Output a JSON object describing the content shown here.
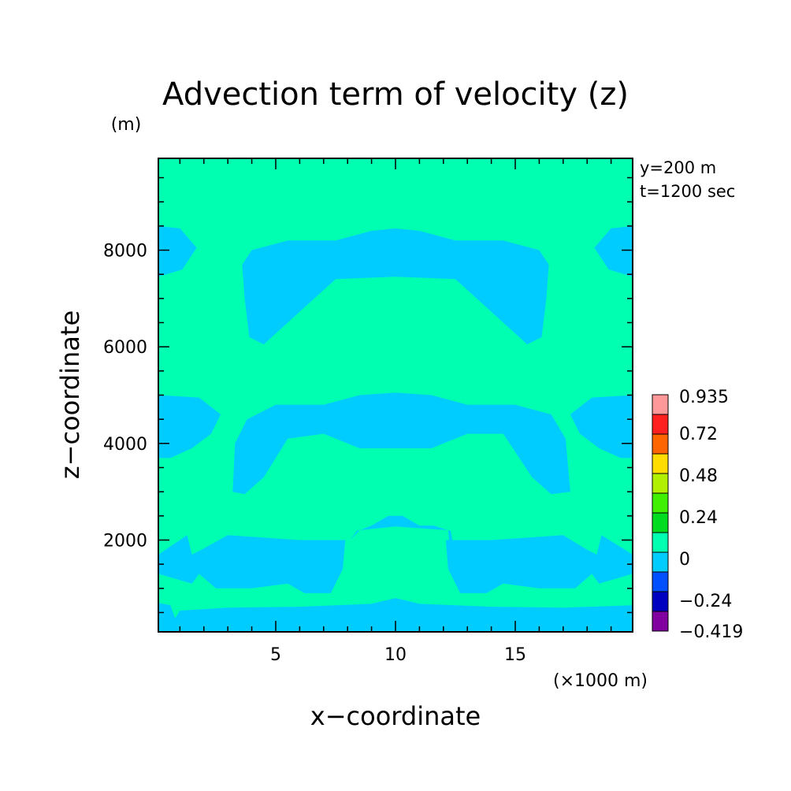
{
  "chart_data": {
    "type": "heatmap",
    "subtype": "filled-contour",
    "title": "Advection term of velocity (z)",
    "xlabel": "x−coordinate",
    "ylabel": "z−coordinate",
    "x_unit": "(×1000 m)",
    "y_unit": "(m)",
    "annotations": [
      "y=200 m",
      "t=1200 sec"
    ],
    "xlim": [
      0.1,
      19.9
    ],
    "ylim": [
      100,
      9900
    ],
    "x_ticks": [
      5,
      10,
      15
    ],
    "x_tick_labels": [
      "5",
      "10",
      "15"
    ],
    "y_ticks": [
      2000,
      4000,
      6000,
      8000
    ],
    "y_tick_labels": [
      "2000",
      "4000",
      "6000",
      "8000"
    ],
    "grid": false,
    "background_level_color": "#00ffb0",
    "colorbar": {
      "levels": [
        -0.419,
        -0.24,
        0,
        0.24,
        0.48,
        0.72,
        0.935
      ],
      "labels": [
        "−0.419",
        "−0.24",
        "0",
        "0.24",
        "0.48",
        "0.72",
        "0.935"
      ],
      "colors": [
        "#8000a0",
        "#0000c0",
        "#0050ff",
        "#00ccff",
        "#00ffb0",
        "#00dd20",
        "#40f000",
        "#b0f000",
        "#ffdd00",
        "#ff6600",
        "#ff2020",
        "#ff9999"
      ]
    },
    "regions": [
      {
        "name": "lower-band",
        "value_range": [
          -0.24,
          0
        ],
        "points": [
          [
            0.1,
            100
          ],
          [
            19.9,
            100
          ],
          [
            19.9,
            650
          ],
          [
            17,
            600
          ],
          [
            14,
            620
          ],
          [
            11,
            680
          ],
          [
            10,
            800
          ],
          [
            9,
            680
          ],
          [
            6,
            620
          ],
          [
            3,
            600
          ],
          [
            1,
            540
          ],
          [
            0.8,
            380
          ],
          [
            0.6,
            650
          ],
          [
            0.1,
            700
          ]
        ]
      },
      {
        "name": "left-lower-lobe",
        "value_range": [
          -0.24,
          0
        ],
        "points": [
          [
            0.1,
            1700
          ],
          [
            1.3,
            2100
          ],
          [
            1.5,
            1700
          ],
          [
            1.9,
            1800
          ],
          [
            3,
            2100
          ],
          [
            6,
            2000
          ],
          [
            7,
            2000
          ],
          [
            7.9,
            2000
          ],
          [
            7.8,
            1400
          ],
          [
            7.3,
            900
          ],
          [
            6.2,
            900
          ],
          [
            5.5,
            1100
          ],
          [
            4,
            1000
          ],
          [
            2.5,
            1000
          ],
          [
            1.8,
            1300
          ],
          [
            1.5,
            1100
          ],
          [
            0.1,
            1300
          ]
        ]
      },
      {
        "name": "center-cap",
        "value_range": [
          -0.24,
          0
        ],
        "points": [
          [
            8.1,
            2000
          ],
          [
            8.5,
            2200
          ],
          [
            9,
            2300
          ],
          [
            9.7,
            2500
          ],
          [
            10.3,
            2500
          ],
          [
            11,
            2300
          ],
          [
            11.6,
            2300
          ],
          [
            12.2,
            2200
          ],
          [
            12.3,
            1600
          ],
          [
            12.7,
            1200
          ],
          [
            12.3,
            2200
          ],
          [
            10,
            2280
          ],
          [
            8.4,
            2200
          ]
        ]
      },
      {
        "name": "right-lower-lobe",
        "value_range": [
          -0.24,
          0
        ],
        "points": [
          [
            19.9,
            1700
          ],
          [
            18.6,
            2100
          ],
          [
            18.4,
            1700
          ],
          [
            18,
            1800
          ],
          [
            17,
            2100
          ],
          [
            14,
            2000
          ],
          [
            13,
            2000
          ],
          [
            12.1,
            2000
          ],
          [
            12.2,
            1400
          ],
          [
            12.7,
            900
          ],
          [
            13.8,
            900
          ],
          [
            14.5,
            1100
          ],
          [
            16,
            1000
          ],
          [
            17.5,
            1000
          ],
          [
            18.2,
            1300
          ],
          [
            18.5,
            1100
          ],
          [
            19.9,
            1300
          ]
        ]
      },
      {
        "name": "middle-band",
        "value_range": [
          -0.24,
          0
        ],
        "points": [
          [
            3.2,
            3000
          ],
          [
            3.3,
            4000
          ],
          [
            3.8,
            4500
          ],
          [
            5,
            4800
          ],
          [
            7,
            4800
          ],
          [
            8.5,
            5000
          ],
          [
            10,
            5050
          ],
          [
            11.5,
            5000
          ],
          [
            13,
            4800
          ],
          [
            15,
            4800
          ],
          [
            16.5,
            4600
          ],
          [
            17.1,
            4100
          ],
          [
            17.3,
            3000
          ],
          [
            16.5,
            2950
          ],
          [
            15.7,
            3300
          ],
          [
            14.5,
            4200
          ],
          [
            13,
            4200
          ],
          [
            11.5,
            3900
          ],
          [
            8.5,
            3900
          ],
          [
            7,
            4200
          ],
          [
            5.5,
            4100
          ],
          [
            4.5,
            3300
          ],
          [
            3.7,
            2950
          ]
        ]
      },
      {
        "name": "middle-left-edge",
        "value_range": [
          -0.24,
          0
        ],
        "points": [
          [
            0.1,
            5000
          ],
          [
            1.8,
            4950
          ],
          [
            2.7,
            4600
          ],
          [
            2.3,
            4200
          ],
          [
            1.5,
            3900
          ],
          [
            0.6,
            3700
          ],
          [
            0.1,
            3700
          ]
        ]
      },
      {
        "name": "middle-right-edge",
        "value_range": [
          -0.24,
          0
        ],
        "points": [
          [
            19.9,
            5000
          ],
          [
            18.2,
            4950
          ],
          [
            17.3,
            4600
          ],
          [
            17.7,
            4200
          ],
          [
            18.5,
            3900
          ],
          [
            19.4,
            3700
          ],
          [
            19.9,
            3700
          ]
        ]
      },
      {
        "name": "upper-band",
        "value_range": [
          -0.24,
          0
        ],
        "points": [
          [
            3.6,
            7700
          ],
          [
            4,
            8000
          ],
          [
            5.5,
            8200
          ],
          [
            7.5,
            8200
          ],
          [
            9,
            8400
          ],
          [
            10,
            8450
          ],
          [
            11,
            8400
          ],
          [
            12.5,
            8200
          ],
          [
            14.5,
            8200
          ],
          [
            16,
            8000
          ],
          [
            16.4,
            7700
          ],
          [
            16.3,
            7000
          ],
          [
            16.1,
            6200
          ],
          [
            15.5,
            6050
          ],
          [
            14.5,
            6500
          ],
          [
            12.5,
            7400
          ],
          [
            10,
            7450
          ],
          [
            7.5,
            7400
          ],
          [
            5.5,
            6500
          ],
          [
            4.5,
            6050
          ],
          [
            3.9,
            6200
          ],
          [
            3.7,
            7000
          ]
        ]
      },
      {
        "name": "upper-left-edge",
        "value_range": [
          -0.24,
          0
        ],
        "points": [
          [
            0.1,
            8500
          ],
          [
            1,
            8450
          ],
          [
            1.7,
            8050
          ],
          [
            1.1,
            7600
          ],
          [
            0.1,
            7450
          ]
        ]
      },
      {
        "name": "upper-right-edge",
        "value_range": [
          -0.24,
          0
        ],
        "points": [
          [
            19.9,
            8500
          ],
          [
            19,
            8450
          ],
          [
            18.3,
            8050
          ],
          [
            18.9,
            7600
          ],
          [
            19.9,
            7450
          ]
        ]
      }
    ]
  }
}
